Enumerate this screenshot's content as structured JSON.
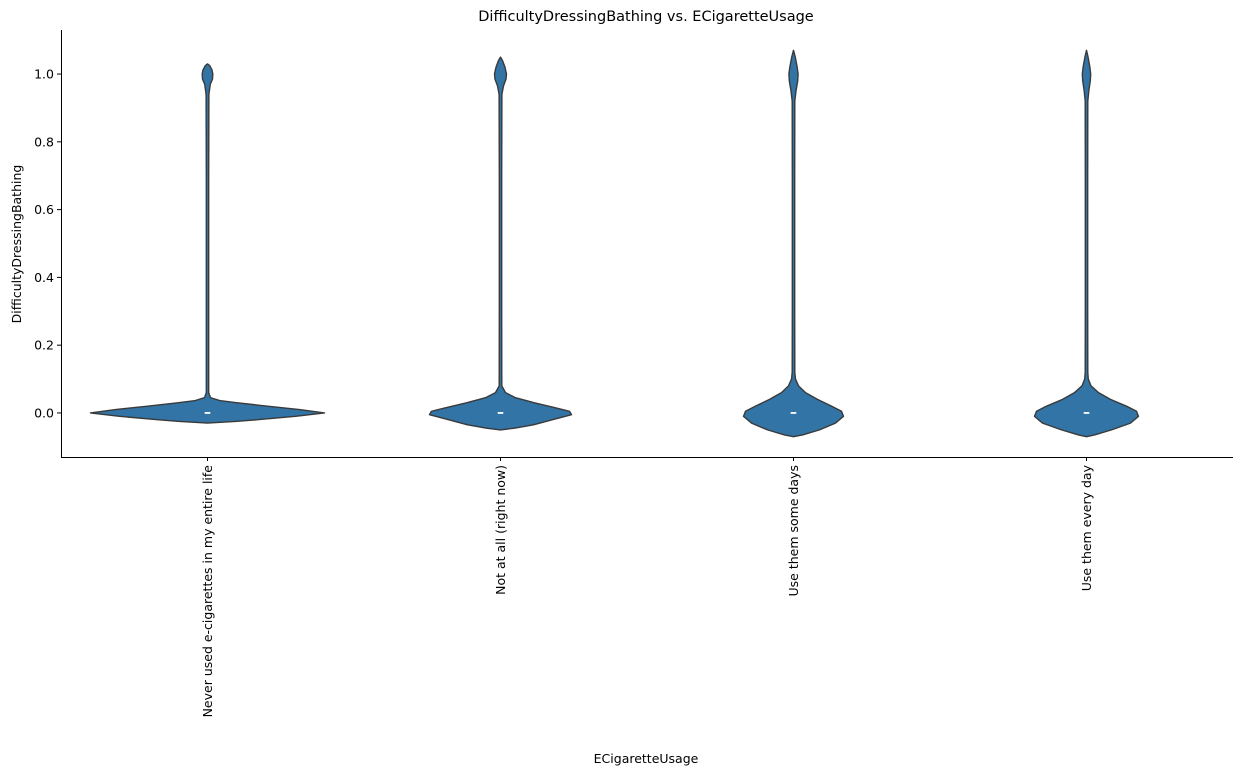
{
  "chart_data": {
    "type": "violin",
    "title": "DifficultyDressingBathing vs. ECigaretteUsage",
    "xlabel": "ECigaretteUsage",
    "ylabel": "DifficultyDressingBathing",
    "ylim": [
      -0.13,
      1.13
    ],
    "yticks": [
      0.0,
      0.2,
      0.4,
      0.6,
      0.8,
      1.0
    ],
    "ytick_labels": [
      "0.0",
      "0.2",
      "0.4",
      "0.6",
      "0.8",
      "1.0"
    ],
    "grid": false,
    "fill_color": "#3174a5",
    "edge_color": "#3a3a3a",
    "categories": [
      "Never used e-cigarettes in my entire life",
      "Not at all (right now)",
      "Use them some days",
      "Use them every day"
    ],
    "value_range": [
      [
        -0.03,
        1.03
      ],
      [
        -0.05,
        1.05
      ],
      [
        -0.07,
        1.07
      ],
      [
        -0.07,
        1.07
      ]
    ],
    "median": [
      0.0,
      0.0,
      0.0,
      0.0
    ]
  }
}
